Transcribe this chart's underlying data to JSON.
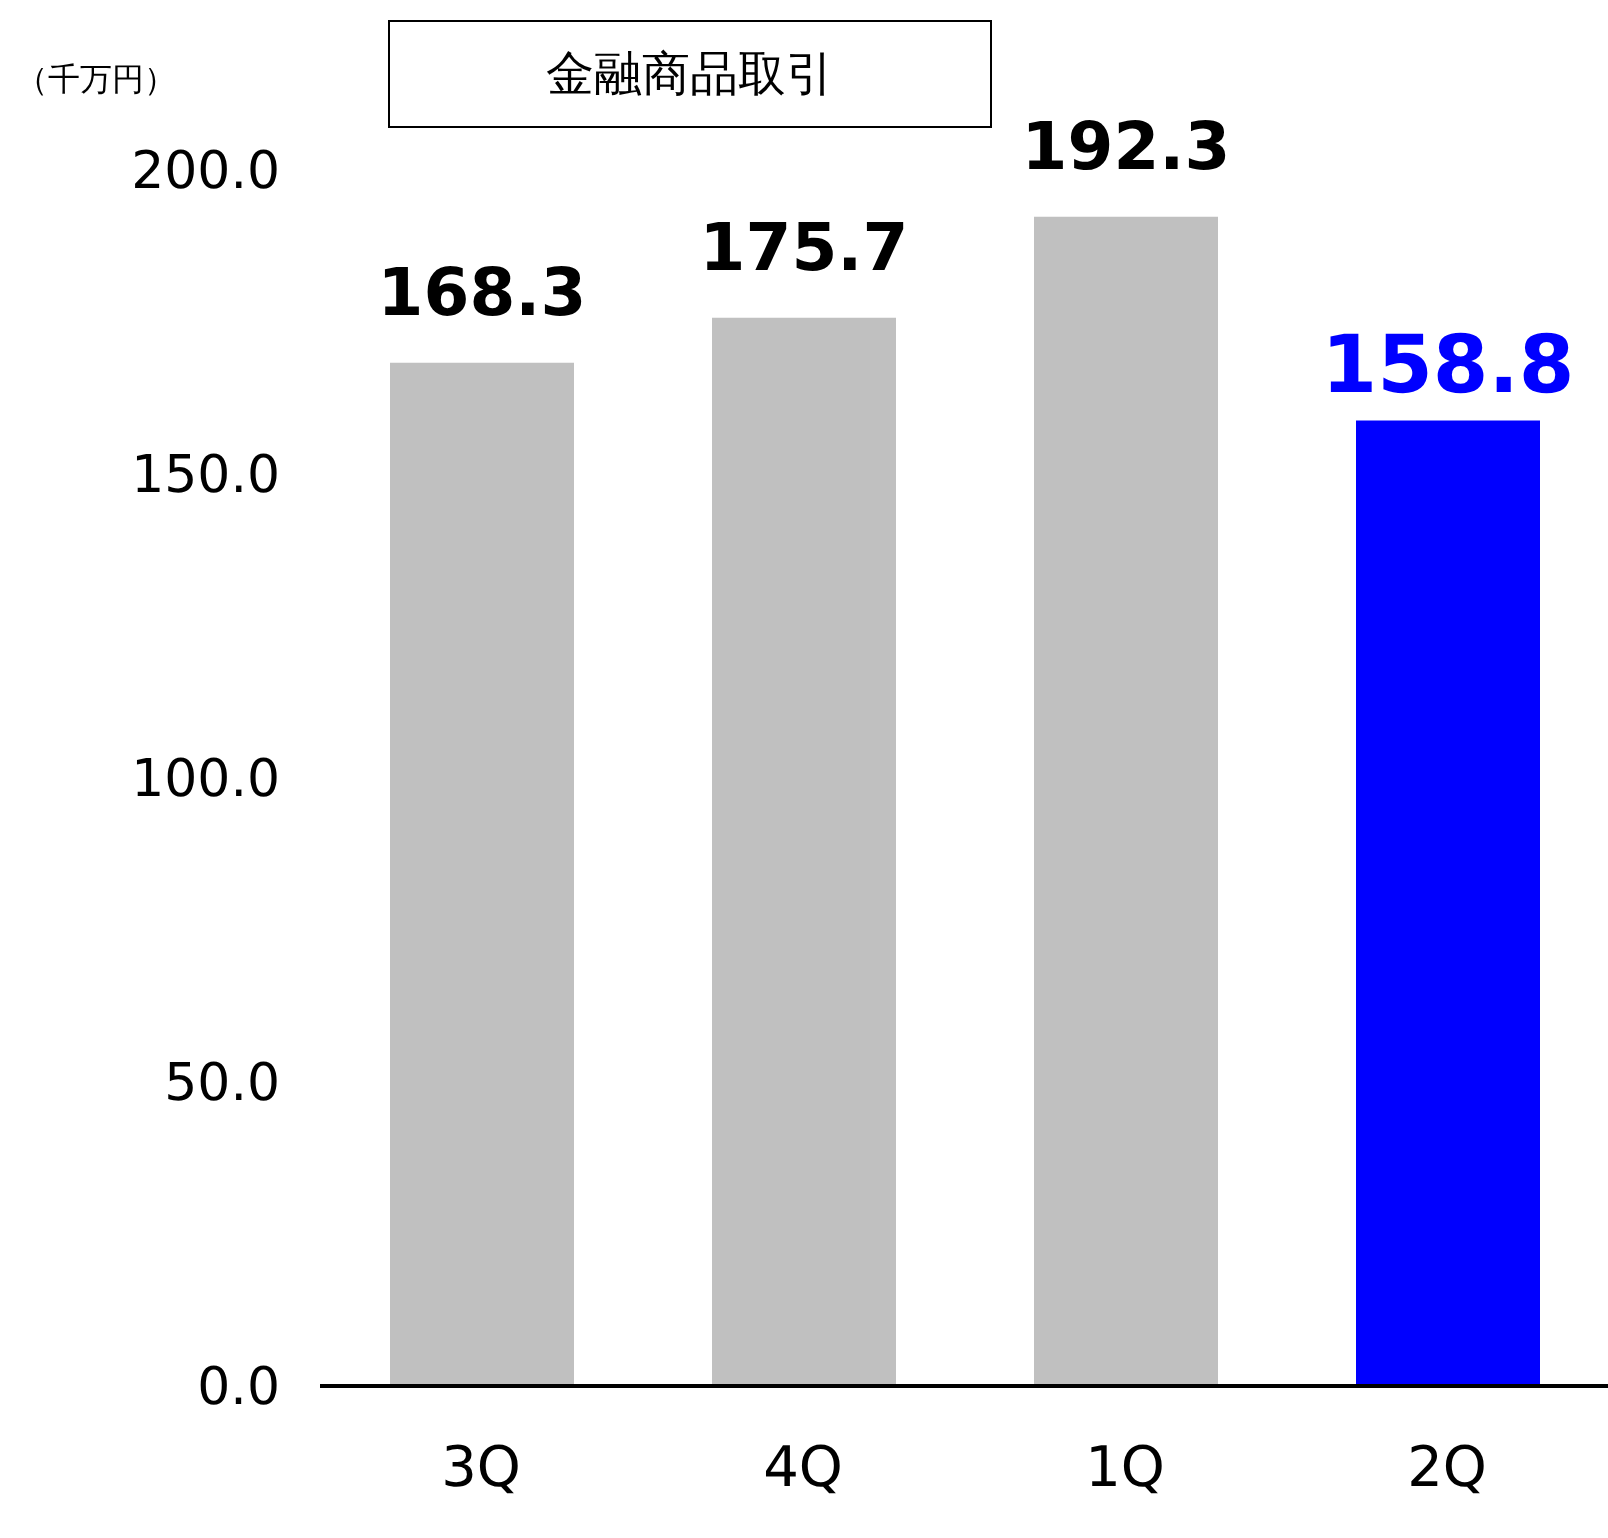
{
  "chart_data": {
    "type": "bar",
    "title": "金融商品取引",
    "ylabel": "（千万円）",
    "categories": [
      "3Q",
      "4Q",
      "1Q",
      "2Q"
    ],
    "values": [
      168.3,
      175.7,
      192.3,
      158.8
    ],
    "colors": [
      "#c0c0c0",
      "#c0c0c0",
      "#c0c0c0",
      "#0000ff"
    ],
    "ylim": [
      0,
      200
    ],
    "yticks": [
      {
        "value": 0,
        "label": "0.0"
      },
      {
        "value": 50,
        "label": "50.0"
      },
      {
        "value": 100,
        "label": "100.0"
      },
      {
        "value": 150,
        "label": "150.0"
      },
      {
        "value": 200,
        "label": "200.0"
      }
    ],
    "data_labels": true,
    "grid": false,
    "legend": false
  }
}
